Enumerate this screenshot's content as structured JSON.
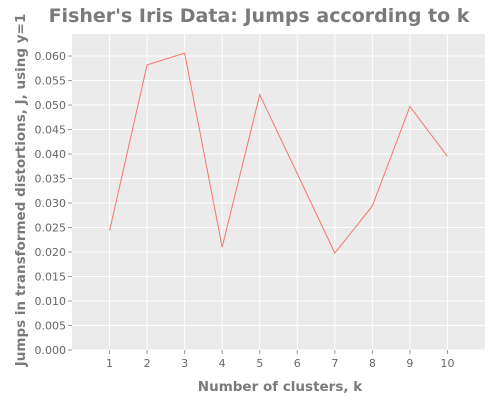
{
  "chart_data": {
    "type": "line",
    "title": "Fisher's Iris Data: Jumps according to k",
    "xlabel": "Number of clusters, k",
    "ylabel": "Jumps in transformed distortions, J, using y=1",
    "x": [
      1,
      2,
      3,
      4,
      5,
      6,
      7,
      8,
      9,
      10
    ],
    "series": [
      {
        "values": [
          0.0243,
          0.0582,
          0.0606,
          0.021,
          0.0521,
          0.036,
          0.0198,
          0.0294,
          0.0497,
          0.0395
        ]
      }
    ],
    "xlim": [
      0,
      11
    ],
    "ylim": [
      0,
      0.0645
    ],
    "xticks": [
      "1",
      "2",
      "3",
      "4",
      "5",
      "6",
      "7",
      "8",
      "9",
      "10"
    ],
    "yticks": [
      "0.000",
      "0.005",
      "0.010",
      "0.015",
      "0.020",
      "0.025",
      "0.030",
      "0.035",
      "0.040",
      "0.045",
      "0.050",
      "0.055",
      "0.060"
    ],
    "grid": true,
    "colors": {
      "panel_background": "#ebebeb",
      "line": "#f8766d",
      "gridline": "#ffffff",
      "text": "#7a7a7a"
    }
  }
}
